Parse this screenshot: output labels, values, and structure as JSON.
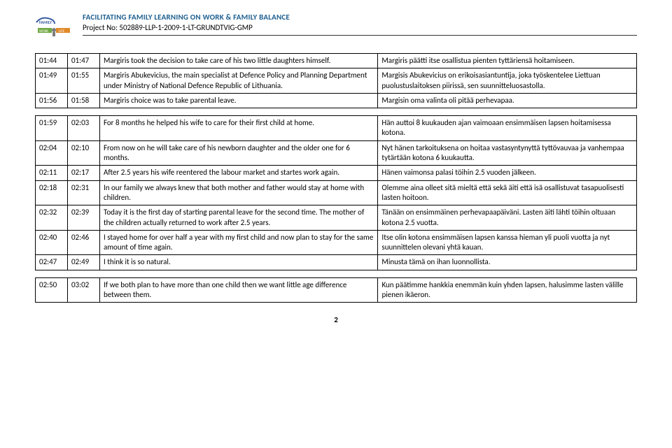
{
  "header": {
    "title": "FACILITATING FAMILY LEARNING ON WORK & FAMILY BALANCE",
    "subtitle": "Project No: 502889-LLP-1-2009-1-LT-GRUNDTVIG-GMP",
    "logo_colors": {
      "blue": "#3b5fa3",
      "green": "#6fa843",
      "grey": "#7d7d7d",
      "orange": "#e08a2b"
    }
  },
  "tables": [
    {
      "rows": [
        {
          "t1": "01:44",
          "t2": "01:47",
          "en": "Margiris took the decision to take care of his two little daughters himself.",
          "fi": "Margiris päätti itse osallistua pienten tyttäriensä hoitamiseen."
        },
        {
          "t1": "01:49",
          "t2": "01:55",
          "en": "Margiris Abukevicius, the main specialist at Defence Policy and Planning Department under Ministry of National Defence Republic of Lithuania.",
          "fi": "Margisis Abukevicius on erikoisasiantuntija, joka työskentelee Liettuan puolustuslaitoksen piirissä, sen suunnitteluosastolla."
        },
        {
          "t1": "01:56",
          "t2": "01:58",
          "en": "Margiris choice was to take parental leave.",
          "fi": "Margisin oma valinta oli pitää perhevapaa."
        }
      ]
    },
    {
      "rows": [
        {
          "t1": "01:59",
          "t2": "02:03",
          "en": "For 8 months he helped his wife to care for their first child at home.",
          "fi": "Hän auttoi 8 kuukauden ajan vaimoaan ensimmäisen lapsen hoitamisessa kotona."
        },
        {
          "t1": "02:04",
          "t2": "02:10",
          "en": "From now on he will take care of his newborn daughter and the older one for 6 months.",
          "fi": "Nyt hänen tarkoituksena on hoitaa vastasyntynyttä tyttövauvaa ja vanhempaa tytärtään kotona 6 kuukautta."
        },
        {
          "t1": "02:11",
          "t2": "02:17",
          "en": "After 2.5 years his wife reentered the labour market and startes work again.",
          "fi": "Hänen vaimonsa palasi töihin 2.5 vuoden jälkeen."
        },
        {
          "t1": "02:18",
          "t2": "02:31",
          "en": "In our family we always knew that both mother and father would stay at home with children.",
          "fi": "Olemme aina olleet sitä mieltä että sekä äiti että isä osallistuvat tasapuolisesti lasten hoitoon."
        },
        {
          "t1": "02:32",
          "t2": "02:39",
          "en": "Today it is the first day of starting parental leave for the second time. The mother of the children actually returned to work after 2.5 years.",
          "fi": "Tänään on ensimmäinen perhevapaapäiväni. Lasten äiti lähti töihin oltuaan kotona 2.5 vuotta."
        },
        {
          "t1": "02:40",
          "t2": "02:46",
          "en": "I stayed home for over half a year with my first child and now plan to stay for the same amount of time again.",
          "fi": "Itse olin kotona ensimmäisen lapsen kanssa hieman yli puoli vuotta ja nyt suunnittelen olevani yhtä kauan."
        },
        {
          "t1": "02:47",
          "t2": "02:49",
          "en": "I think it is so natural.",
          "fi": "Minusta tämä on ihan luonnollista."
        }
      ]
    },
    {
      "rows": [
        {
          "t1": "02:50",
          "t2": "03:02",
          "en": "If we both plan to have more than one child then we want little age difference between them.",
          "fi": "Kun päätimme hankkia enemmän kuin yhden lapsen, halusimme lasten välille pienen ikäeron."
        }
      ]
    }
  ],
  "page_number": "2"
}
